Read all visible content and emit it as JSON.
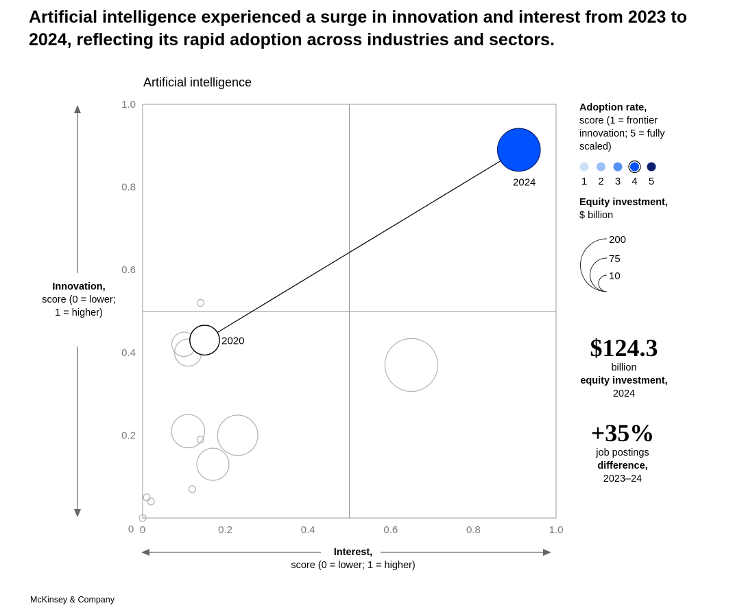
{
  "title": "Artificial intelligence experienced a surge in innovation and interest from 2023 to 2024, reflecting its rapid adoption across industries and sectors.",
  "footer": "McKinsey & Company",
  "legend": {
    "adoption_title": "Adoption rate,",
    "adoption_desc": "score (1 = frontier innovation; 5 = fully scaled)",
    "adoption_levels": [
      "1",
      "2",
      "3",
      "4",
      "5"
    ],
    "adoption_colors": [
      "#cfe0fb",
      "#9cc0f8",
      "#5592f7",
      "#0052ff",
      "#0b1f6e"
    ],
    "equity_title": "Equity investment,",
    "equity_unit": "$ billion",
    "equity_sizes": [
      "200",
      "75",
      "10"
    ]
  },
  "stats": [
    {
      "value": "$124.3",
      "line1": "billion",
      "line2": "equity investment,",
      "line3": "2024"
    },
    {
      "value": "+35%",
      "line1": "job postings",
      "line2": "difference,",
      "line3": "2023–24"
    }
  ],
  "chart_data": {
    "type": "scatter",
    "title": "Artificial intelligence",
    "ylabel_bold": "Innovation,",
    "ylabel_rest": "score (0 = lower; 1 = higher)",
    "xlabel_bold": "Interest,",
    "xlabel_rest": "score (0 = lower; 1 = higher)",
    "xlim": [
      0,
      1
    ],
    "ylim": [
      0,
      1
    ],
    "x_ticks": [
      "0",
      "0.2",
      "0.4",
      "0.6",
      "0.8",
      "1.0"
    ],
    "y_ticks": [
      "0.2",
      "0.4",
      "0.6",
      "0.8",
      "1.0"
    ],
    "quadrant_lines": {
      "x": 0.5,
      "y": 0.5
    },
    "highlight": [
      {
        "label": "2020",
        "x": 0.15,
        "y": 0.43,
        "investment": 60,
        "adoption": 0
      },
      {
        "label": "2024",
        "x": 0.91,
        "y": 0.89,
        "investment": 124.3,
        "adoption": 4
      }
    ],
    "others": [
      {
        "x": 0.14,
        "y": 0.52,
        "investment": 3
      },
      {
        "x": 0.1,
        "y": 0.42,
        "investment": 40
      },
      {
        "x": 0.11,
        "y": 0.4,
        "investment": 50
      },
      {
        "x": 0.11,
        "y": 0.21,
        "investment": 75
      },
      {
        "x": 0.14,
        "y": 0.19,
        "investment": 3
      },
      {
        "x": 0.23,
        "y": 0.2,
        "investment": 110
      },
      {
        "x": 0.17,
        "y": 0.13,
        "investment": 70
      },
      {
        "x": 0.12,
        "y": 0.07,
        "investment": 3
      },
      {
        "x": 0.01,
        "y": 0.05,
        "investment": 3
      },
      {
        "x": 0.02,
        "y": 0.04,
        "investment": 1
      },
      {
        "x": 0.0,
        "y": 0.0,
        "investment": 1
      },
      {
        "x": 0.65,
        "y": 0.37,
        "investment": 190
      }
    ]
  }
}
